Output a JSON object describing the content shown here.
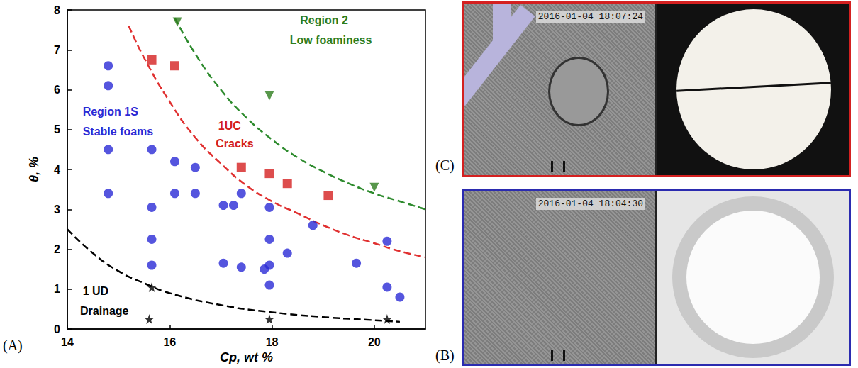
{
  "chart_data": {
    "type": "scatter",
    "xlabel": "Cp, wt %",
    "ylabel": "θ, %",
    "xlim": [
      14,
      21
    ],
    "ylim": [
      0,
      8
    ],
    "xticks": [
      14,
      16,
      18,
      20
    ],
    "yticks": [
      0,
      1,
      2,
      3,
      4,
      5,
      6,
      7,
      8
    ],
    "grid": false,
    "series": [
      {
        "type": "scatter",
        "marker": "circle",
        "color": "#2b2bd6",
        "x": [
          14.8,
          14.8,
          14.8,
          14.8,
          15.65,
          15.65,
          15.65,
          15.65,
          16.1,
          16.1,
          16.5,
          16.5,
          17.05,
          17.25,
          17.4,
          17.05,
          17.4,
          17.85,
          17.95,
          17.95,
          17.95,
          17.95,
          18.3,
          18.8,
          19.65,
          20.25,
          20.25,
          20.5
        ],
        "values": [
          6.6,
          6.1,
          4.5,
          3.4,
          4.5,
          3.05,
          2.25,
          1.6,
          4.2,
          3.4,
          4.05,
          3.4,
          3.1,
          3.1,
          3.4,
          1.65,
          1.55,
          1.5,
          3.05,
          2.25,
          1.6,
          1.1,
          1.9,
          2.6,
          1.65,
          2.2,
          1.05,
          0.8
        ]
      },
      {
        "type": "scatter",
        "marker": "square",
        "color": "#d42020",
        "x": [
          15.65,
          16.1,
          17.4,
          17.95,
          18.3,
          19.1
        ],
        "values": [
          6.75,
          6.6,
          4.05,
          3.9,
          3.65,
          3.35
        ]
      },
      {
        "type": "scatter",
        "marker": "triangle-down",
        "color": "#2e7d1e",
        "x": [
          16.15,
          17.95,
          20.0
        ],
        "values": [
          7.7,
          5.85,
          3.55
        ]
      },
      {
        "type": "scatter",
        "marker": "star",
        "color": "#000000",
        "x": [
          15.65,
          15.6,
          17.95,
          20.25
        ],
        "values": [
          1.05,
          0.25,
          0.25,
          0.25
        ]
      },
      {
        "type": "line",
        "line_style": "dashed",
        "color": "#000000",
        "x": [
          14,
          14.5,
          15,
          15.5,
          16,
          17,
          18,
          19,
          20,
          20.5
        ],
        "values": [
          2.5,
          1.9,
          1.45,
          1.15,
          0.9,
          0.6,
          0.42,
          0.3,
          0.22,
          0.18
        ]
      },
      {
        "type": "line",
        "line_style": "dashed",
        "color": "#e03030",
        "x": [
          15.2,
          15.5,
          16,
          16.5,
          17,
          17.5,
          18,
          18.5,
          19,
          19.5,
          20,
          20.5,
          21
        ],
        "values": [
          7.6,
          6.8,
          5.7,
          4.8,
          4.15,
          3.6,
          3.2,
          2.9,
          2.6,
          2.35,
          2.15,
          1.95,
          1.8
        ]
      },
      {
        "type": "line",
        "line_style": "dashed",
        "color": "#2e8b2e",
        "x": [
          16.1,
          16.5,
          17,
          17.5,
          18,
          18.5,
          19,
          19.5,
          20,
          20.5,
          21
        ],
        "values": [
          7.8,
          6.9,
          6.0,
          5.3,
          4.75,
          4.3,
          3.95,
          3.65,
          3.4,
          3.2,
          3.0
        ]
      }
    ],
    "annotations": [
      {
        "text": "Region 1S",
        "color": "#2b2bd6"
      },
      {
        "text": "Stable foams",
        "color": "#2b2bd6"
      },
      {
        "text": "1UC",
        "color": "#d42020"
      },
      {
        "text": "Cracks",
        "color": "#d42020"
      },
      {
        "text": "Region 2",
        "color": "#2e7d1e"
      },
      {
        "text": "Low foaminess",
        "color": "#2e7d1e"
      },
      {
        "text": "1 UD",
        "color": "#000000"
      },
      {
        "text": "Drainage",
        "color": "#000000"
      }
    ]
  },
  "figure": {
    "panel_label": "(A)",
    "photos": [
      {
        "label": "(C)",
        "timestamp": "2016-01-04 18:07:24",
        "color": "#d42020"
      },
      {
        "label": "(B)",
        "timestamp": "2016-01-04 18:04:30",
        "color": "#2b2bb0"
      }
    ]
  }
}
